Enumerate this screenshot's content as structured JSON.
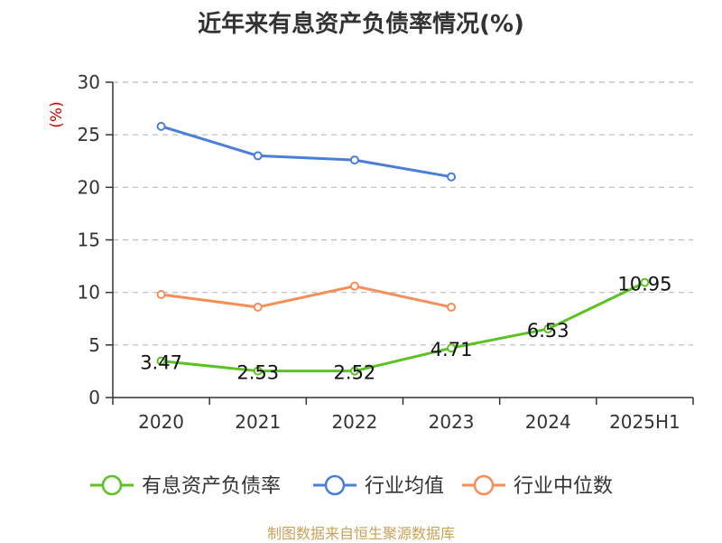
{
  "header": {
    "title": "近年来有息资产负债率情况(%)"
  },
  "footer": {
    "source": "制图数据来自恒生聚源数据库"
  },
  "chart_data": {
    "type": "line",
    "title": "近年来有息资产负债率情况(%)",
    "ylabel": "(%)",
    "xlabel": "",
    "categories": [
      "2020",
      "2021",
      "2022",
      "2023",
      "2024",
      "2025H1"
    ],
    "ylim": [
      0,
      30
    ],
    "yticks": [
      "0",
      "5",
      "10",
      "15",
      "20",
      "25",
      "30"
    ],
    "grid": true,
    "legend_position": "bottom",
    "series": [
      {
        "name": "有息资产负债率",
        "color": "#5cc223",
        "values": [
          3.47,
          2.53,
          2.52,
          4.71,
          6.53,
          10.95
        ],
        "labels": [
          "3.47",
          "2.53",
          "2.52",
          "4.71",
          "6.53",
          "10.95"
        ]
      },
      {
        "name": "行业均值",
        "color": "#4a7ed8",
        "values": [
          25.8,
          23.0,
          22.6,
          21.0,
          null,
          null
        ]
      },
      {
        "name": "行业中位数",
        "color": "#f58f5a",
        "values": [
          9.8,
          8.6,
          10.6,
          8.6,
          null,
          null
        ]
      }
    ],
    "colors": {
      "axis": "#333333",
      "grid": "#bbbbbb",
      "ylabel": "#cc0000",
      "source": "#c8a25a"
    }
  }
}
